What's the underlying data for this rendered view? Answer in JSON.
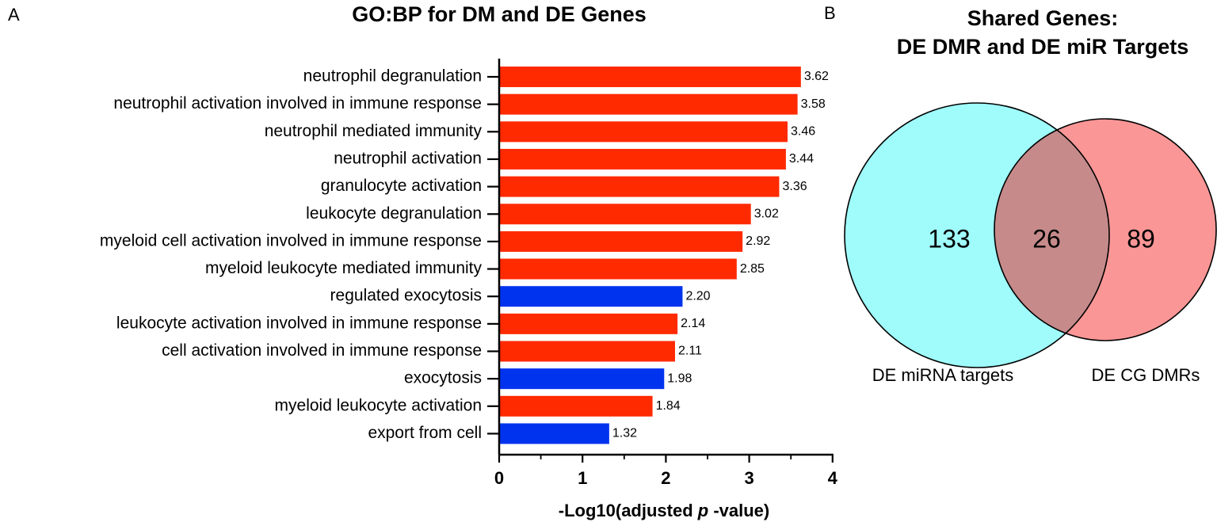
{
  "panel_a": {
    "letter": "A",
    "xlabel_prefix": "-Log10(adjusted ",
    "xlabel_italic": "p",
    "xlabel_suffix": " -value)"
  },
  "panel_b": {
    "letter": "B",
    "title_line1": "Shared Genes:",
    "title_line2": "DE DMR and DE miR Targets",
    "left_count": "133",
    "overlap_count": "26",
    "right_count": "89",
    "left_label": "DE miRNA targets",
    "right_label": "DE CG DMRs",
    "left_color": "#a0fbfb",
    "right_color": "#fa9696",
    "overlap_color": "#c68a8a"
  },
  "colors": {
    "dm": "#ff2a00",
    "de": "#0033ee"
  },
  "chart_data": [
    {
      "type": "bar",
      "orientation": "horizontal",
      "title": "GO:BP for DM and DE Genes",
      "xlabel": "-Log10(adjusted p -value)",
      "ylabel": "",
      "xlim": [
        0,
        4
      ],
      "xticks": [
        "0",
        "1",
        "2",
        "3",
        "4"
      ],
      "categories": [
        "neutrophil degranulation",
        "neutrophil activation involved in immune response",
        "neutrophil mediated immunity",
        "neutrophil activation",
        "granulocyte activation",
        "leukocyte degranulation",
        "myeloid cell activation involved in immune response",
        "myeloid leukocyte mediated immunity",
        "regulated exocytosis",
        "leukocyte activation involved in immune response",
        "cell activation involved in immune response",
        "exocytosis",
        "myeloid leukocyte activation",
        "export from cell"
      ],
      "values": [
        3.62,
        3.58,
        3.46,
        3.44,
        3.36,
        3.02,
        2.92,
        2.85,
        2.2,
        2.14,
        2.11,
        1.98,
        1.84,
        1.32
      ],
      "value_labels": [
        "3.62",
        "3.58",
        "3.46",
        "3.44",
        "3.36",
        "3.02",
        "2.92",
        "2.85",
        "2.20",
        "2.14",
        "2.11",
        "1.98",
        "1.84",
        "1.32"
      ],
      "bar_group": [
        "dm",
        "dm",
        "dm",
        "dm",
        "dm",
        "dm",
        "dm",
        "dm",
        "de",
        "dm",
        "dm",
        "de",
        "dm",
        "de"
      ]
    }
  ]
}
